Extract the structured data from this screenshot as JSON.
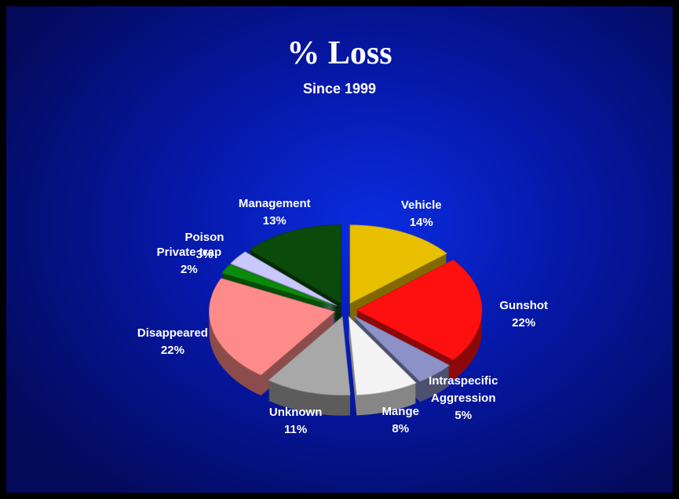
{
  "chart_data": {
    "type": "pie",
    "title": "% Loss",
    "subtitle": "Since 1999",
    "categories": [
      "Vehicle",
      "Gunshot",
      "Intraspecific Aggression",
      "Mange",
      "Unknown",
      "Disappeared",
      "Private trap",
      "Poison",
      "Management"
    ],
    "values": [
      14,
      22,
      5,
      8,
      11,
      22,
      2,
      3,
      13
    ],
    "value_labels": [
      "14%",
      "22%",
      "5%",
      "8%",
      "11%",
      "22%",
      "2%",
      "3%",
      "13%"
    ],
    "colors": [
      "#e8c000",
      "#ff1010",
      "#8c92c8",
      "#f4f4f4",
      "#a8a8a8",
      "#ff8a8a",
      "#0a8a0a",
      "#c8c8ff",
      "#0a4a0a"
    ]
  }
}
